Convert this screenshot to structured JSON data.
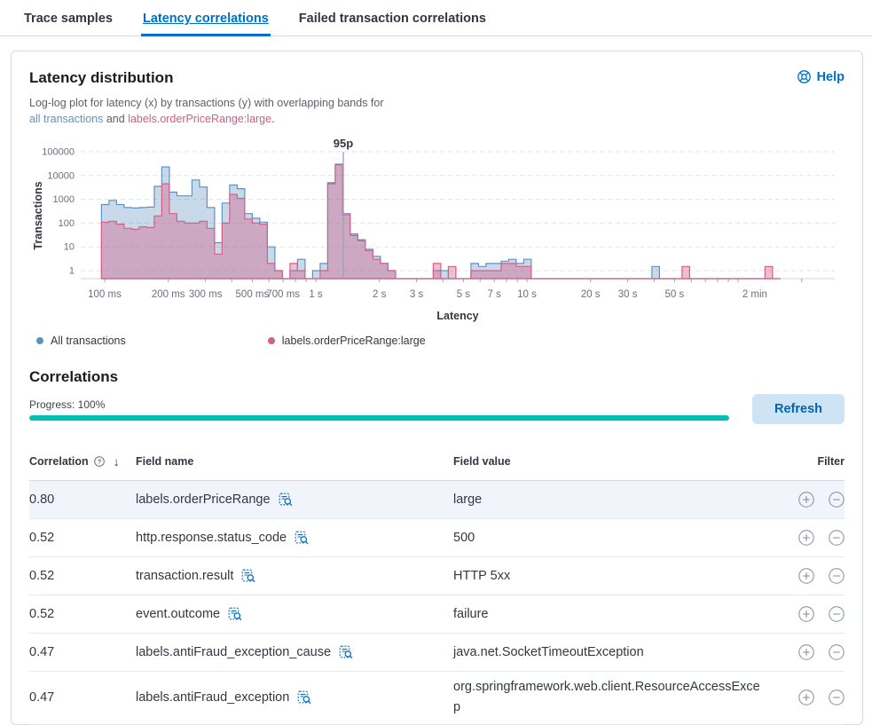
{
  "tabs": {
    "items": [
      {
        "label": "Trace samples",
        "active": false
      },
      {
        "label": "Latency correlations",
        "active": true
      },
      {
        "label": "Failed transaction correlations",
        "active": false
      }
    ]
  },
  "panel": {
    "title": "Latency distribution",
    "help_label": "Help",
    "description": {
      "prefix": "Log-log plot for latency (x) by transactions (y) with overlapping bands for",
      "link_all": "all transactions",
      "middle": " and ",
      "link_label": "labels.orderPriceRange:large",
      "suffix": "."
    }
  },
  "chart_data": {
    "type": "area",
    "title": "Latency distribution",
    "xlabel": "Latency",
    "ylabel": "Transactions",
    "x_scale": "log",
    "y_scale": "log",
    "x_domain_s": [
      0.077,
      287
    ],
    "y_ticks": [
      1,
      10,
      100,
      1000,
      10000,
      100000
    ],
    "x_ticks": [
      {
        "label": "100 ms",
        "s": 0.1
      },
      {
        "label": "200 ms",
        "s": 0.2
      },
      {
        "label": "300 ms",
        "s": 0.3
      },
      {
        "label": "500 ms",
        "s": 0.5
      },
      {
        "label": "700 ms",
        "s": 0.7
      },
      {
        "label": "1 s",
        "s": 1
      },
      {
        "label": "2 s",
        "s": 2
      },
      {
        "label": "3 s",
        "s": 3
      },
      {
        "label": "5 s",
        "s": 5
      },
      {
        "label": "7 s",
        "s": 7
      },
      {
        "label": "10 s",
        "s": 10
      },
      {
        "label": "20 s",
        "s": 20
      },
      {
        "label": "30 s",
        "s": 30
      },
      {
        "label": "50 s",
        "s": 50
      },
      {
        "label": "2 min",
        "s": 120
      }
    ],
    "minor_ticks_s": [
      0.1,
      0.2,
      0.3,
      0.4,
      0.5,
      0.6,
      0.7,
      0.8,
      0.9,
      1,
      2,
      3,
      4,
      5,
      6,
      7,
      8,
      9,
      10,
      20,
      30,
      40,
      50,
      60,
      70,
      80,
      90,
      100,
      200
    ],
    "bucket_start_s": 0.0966,
    "bucket_ratio": 1.0857,
    "annotation": {
      "label": "95p",
      "s": 1.35
    },
    "series": [
      {
        "name": "All transactions",
        "color": "#6092C0",
        "fill": "rgba(96,146,192,0.35)",
        "values": [
          600,
          900,
          600,
          450,
          430,
          450,
          470,
          3500,
          23000,
          2000,
          1400,
          1400,
          6500,
          3300,
          450,
          15,
          700,
          4000,
          2800,
          250,
          160,
          110,
          10,
          1,
          0,
          1,
          3,
          0,
          1,
          2,
          5000,
          30000,
          250,
          35,
          20,
          8,
          4,
          2,
          1,
          0,
          0,
          0,
          0,
          0,
          1,
          1,
          0,
          0,
          0,
          2,
          1.5,
          2,
          2,
          2.5,
          3,
          2,
          3,
          0,
          0,
          0,
          0,
          0,
          0,
          0,
          0,
          0,
          0,
          0,
          0,
          0,
          0,
          0,
          0,
          1.5,
          0,
          0,
          0,
          0,
          0,
          0,
          0,
          0,
          0,
          0,
          0,
          0,
          0,
          0,
          0,
          0
        ]
      },
      {
        "name": "labels.orderPriceRange:large",
        "color": "#D36086",
        "fill": "rgba(211,96,134,0.40)",
        "values": [
          110,
          120,
          90,
          60,
          55,
          70,
          65,
          200,
          4500,
          250,
          120,
          100,
          100,
          120,
          60,
          5,
          100,
          1600,
          1100,
          150,
          100,
          90,
          2,
          1,
          0,
          2,
          1,
          0,
          0,
          1,
          4500,
          28000,
          220,
          30,
          18,
          7,
          3,
          2,
          1,
          0,
          0,
          0,
          0,
          0,
          2,
          0,
          1.5,
          0,
          0,
          1,
          1,
          1,
          1,
          2,
          2,
          1.5,
          1.5,
          0,
          0,
          0,
          0,
          0,
          0,
          0,
          0,
          0,
          0,
          0,
          0,
          0,
          0,
          0,
          0,
          0,
          0,
          0,
          0,
          1.5,
          0,
          0,
          0,
          0,
          0,
          0,
          0,
          0,
          0,
          0,
          1.5,
          0
        ]
      }
    ]
  },
  "legend": {
    "items": [
      {
        "label": "All transactions",
        "color": "#6092C0"
      },
      {
        "label": "labels.orderPriceRange:large",
        "color": "#D36086"
      }
    ]
  },
  "correlations": {
    "heading": "Correlations",
    "progress_label": "Progress: 100%",
    "progress_percent": 100,
    "progress_color": "#00BFB3",
    "refresh_label": "Refresh",
    "table": {
      "headers": [
        "Correlation",
        "Field name",
        "Field value",
        "Filter"
      ],
      "rows": [
        {
          "correlation": "0.80",
          "field": "labels.orderPriceRange",
          "value": "large",
          "highlighted": true
        },
        {
          "correlation": "0.52",
          "field": "http.response.status_code",
          "value": "500",
          "highlighted": false
        },
        {
          "correlation": "0.52",
          "field": "transaction.result",
          "value": "HTTP 5xx",
          "highlighted": false
        },
        {
          "correlation": "0.52",
          "field": "event.outcome",
          "value": "failure",
          "highlighted": false
        },
        {
          "correlation": "0.47",
          "field": "labels.antiFraud_exception_cause",
          "value": "java.net.SocketTimeoutException",
          "highlighted": false
        },
        {
          "correlation": "0.47",
          "field": "labels.antiFraud_exception",
          "value": "org.springframework.web.client.ResourceAccessExcep",
          "highlighted": false
        }
      ]
    }
  }
}
